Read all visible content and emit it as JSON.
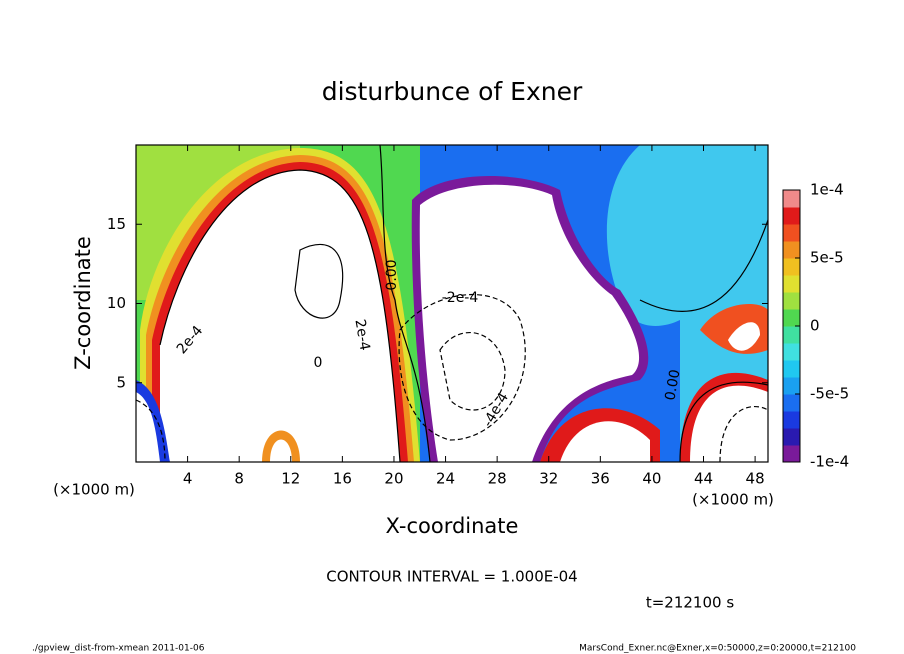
{
  "chart_data": {
    "type": "contour",
    "title": "disturbunce of Exner",
    "xlabel": "X-coordinate",
    "ylabel": "Z-coordinate",
    "x_unit": "(×1000 m)",
    "y_unit": "(×1000 m)",
    "xlim": [
      0,
      49
    ],
    "ylim": [
      0,
      20
    ],
    "xticks": [
      4,
      8,
      12,
      16,
      20,
      24,
      28,
      32,
      36,
      40,
      44,
      48
    ],
    "yticks": [
      5,
      10,
      15
    ],
    "clim": [
      -0.0001,
      0.0001
    ],
    "cticks": [
      {
        "value": 0.0001,
        "label": "1e-4"
      },
      {
        "value": 5e-05,
        "label": "5e-5"
      },
      0,
      {
        "value": -5e-05,
        "label": "-5e-5"
      },
      {
        "value": -0.0001,
        "label": "-1e-4"
      }
    ],
    "colormap": [
      "#7a1a9a",
      "#2a1ab0",
      "#1a3ae0",
      "#1a6ef0",
      "#1aa0f0",
      "#20c8f0",
      "#40e0e0",
      "#40e0a0",
      "#50d850",
      "#a0e040",
      "#e0e030",
      "#f0c020",
      "#f09020",
      "#f05020",
      "#e01a1a",
      "#f08a8a"
    ],
    "contour_interval": "CONTOUR INTERVAL = 1.000E-04",
    "time": "t=212100 s",
    "contour_labels": [
      "0.00",
      "-2e-4",
      "2e-4",
      "2e-4",
      "0",
      "-4e-4",
      "0.00"
    ],
    "footer_left": "./gpview_dist-from-xmean  2011-01-06",
    "footer_right": "MarsCond_Exner.nc@Exner,x=0:50000,z=0:20000,t=212100"
  }
}
